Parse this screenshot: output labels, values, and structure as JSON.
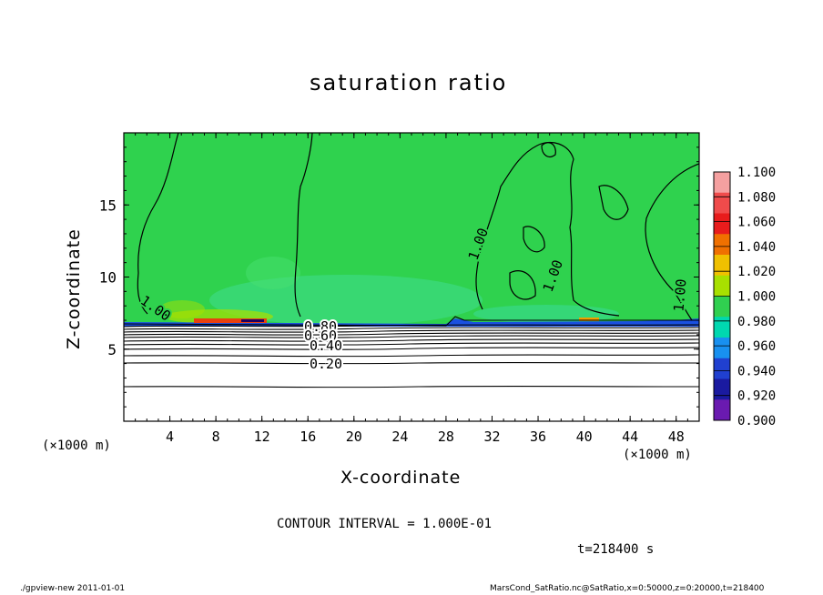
{
  "chart_data": {
    "type": "heatmap",
    "title": "saturation ratio",
    "xlabel": "X-coordinate",
    "ylabel": "Z-coordinate",
    "x_unit": "(×1000 m)",
    "y_unit": "(×1000 m)",
    "xlim": [
      0,
      50
    ],
    "ylim": [
      0,
      20
    ],
    "x_ticks": [
      4,
      8,
      12,
      16,
      20,
      24,
      28,
      32,
      36,
      40,
      44,
      48
    ],
    "y_ticks": [
      5,
      10,
      15
    ],
    "colorbar": {
      "levels": [
        "1.100",
        "1.080",
        "1.060",
        "1.040",
        "1.020",
        "1.000",
        "0.980",
        "0.960",
        "0.940",
        "0.920",
        "0.900"
      ],
      "colors": [
        "#f5a0a0",
        "#f04b4b",
        "#e81c1c",
        "#f07000",
        "#f0c000",
        "#a8e000",
        "#30d050",
        "#00d8b0",
        "#1890f0",
        "#2040d0",
        "#1a1aa0",
        "#6a1ab0"
      ]
    },
    "contour_labels": [
      "1.00",
      "1.00",
      "1.00",
      "1.00",
      "0.80",
      "0.60",
      "0.40",
      "0.20"
    ],
    "contour_interval_text": "CONTOUR INTERVAL = 1.000E-01",
    "time_text": "t=218400 s",
    "approx_fields": {
      "upper_region_value": 1.0,
      "surface_layer_value_range": [
        0.9,
        1.06
      ],
      "lower_region_value_range": [
        0.0,
        0.9
      ]
    }
  },
  "footer": {
    "left": "./gpview-new  2011-01-01",
    "right": "MarsCond_SatRatio.nc@SatRatio,x=0:50000,z=0:20000,t=218400"
  }
}
